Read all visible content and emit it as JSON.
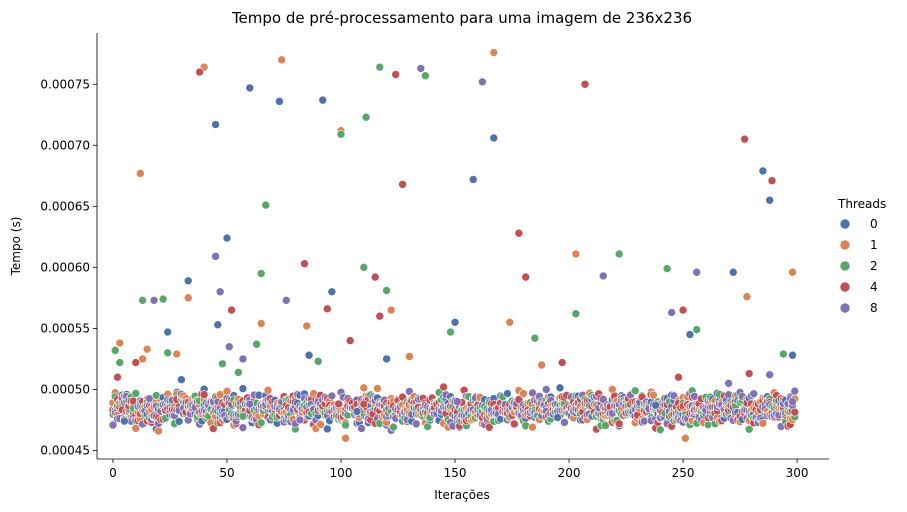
{
  "chart_data": {
    "type": "scatter",
    "title": "Tempo de pré-processamento para uma imagem de 236x236",
    "xlabel": "Iterações",
    "ylabel": "Tempo (s)",
    "xlim": [
      -7,
      314
    ],
    "ylim": [
      0.000443,
      0.000792
    ],
    "x_ticks": [
      0,
      50,
      100,
      150,
      200,
      250,
      300
    ],
    "x_tick_labels": [
      "0",
      "50",
      "100",
      "150",
      "200",
      "250",
      "300"
    ],
    "y_ticks": [
      0.00045,
      0.0005,
      0.00055,
      0.0006,
      0.00065,
      0.0007,
      0.00075
    ],
    "y_tick_labels": [
      "0.00045",
      "0.00050",
      "0.00055",
      "0.00060",
      "0.00065",
      "0.00070",
      "0.00075"
    ],
    "grid": false,
    "legend": {
      "title": "Threads",
      "placement": "right"
    },
    "series": [
      {
        "name": "0",
        "color": "#4c72b0",
        "points": [
          [
            5,
            0.000474
          ],
          [
            30,
            0.000508
          ],
          [
            33,
            0.000589
          ],
          [
            45,
            0.000717
          ],
          [
            46,
            0.000553
          ],
          [
            50,
            0.000624
          ],
          [
            60,
            0.000747
          ],
          [
            73,
            0.000736
          ],
          [
            92,
            0.000737
          ],
          [
            96,
            0.00058
          ],
          [
            107,
            0.000482
          ],
          [
            120,
            0.000525
          ],
          [
            150,
            0.000555
          ],
          [
            158,
            0.000672
          ],
          [
            167,
            0.000706
          ],
          [
            195,
            0.000477
          ],
          [
            238,
            0.000487
          ],
          [
            253,
            0.000545
          ],
          [
            272,
            0.000596
          ],
          [
            285,
            0.000679
          ],
          [
            288,
            0.000655
          ],
          [
            298,
            0.000528
          ],
          [
            24,
            0.000547
          ],
          [
            86,
            0.000528
          ]
        ]
      },
      {
        "name": "1",
        "color": "#dd8452",
        "points": [
          [
            12,
            0.000677
          ],
          [
            13,
            0.000525
          ],
          [
            15,
            0.000533
          ],
          [
            33,
            0.000575
          ],
          [
            40,
            0.000764
          ],
          [
            65,
            0.000554
          ],
          [
            74,
            0.00077
          ],
          [
            85,
            0.000552
          ],
          [
            100,
            0.000712
          ],
          [
            102,
            0.00046
          ],
          [
            122,
            0.000565
          ],
          [
            130,
            0.000527
          ],
          [
            167,
            0.000776
          ],
          [
            174,
            0.000555
          ],
          [
            188,
            0.00052
          ],
          [
            203,
            0.000611
          ],
          [
            251,
            0.00046
          ],
          [
            278,
            0.000576
          ],
          [
            298,
            0.000596
          ],
          [
            3,
            0.000538
          ],
          [
            28,
            0.000529
          ]
        ]
      },
      {
        "name": "2",
        "color": "#55a868",
        "points": [
          [
            1,
            0.000532
          ],
          [
            3,
            0.000522
          ],
          [
            13,
            0.000573
          ],
          [
            22,
            0.000574
          ],
          [
            24,
            0.00053
          ],
          [
            48,
            0.000521
          ],
          [
            55,
            0.000514
          ],
          [
            63,
            0.000537
          ],
          [
            65,
            0.000595
          ],
          [
            67,
            0.000651
          ],
          [
            90,
            0.000523
          ],
          [
            100,
            0.000709
          ],
          [
            110,
            0.0006
          ],
          [
            111,
            0.000723
          ],
          [
            117,
            0.000764
          ],
          [
            120,
            0.000581
          ],
          [
            137,
            0.000757
          ],
          [
            148,
            0.000547
          ],
          [
            185,
            0.000542
          ],
          [
            203,
            0.000562
          ],
          [
            222,
            0.000611
          ],
          [
            243,
            0.000599
          ],
          [
            256,
            0.000549
          ],
          [
            294,
            0.000529
          ],
          [
            240,
            0.000467
          ],
          [
            57,
            0.000478
          ]
        ]
      },
      {
        "name": "4",
        "color": "#c44e52",
        "points": [
          [
            2,
            0.00051
          ],
          [
            10,
            0.000522
          ],
          [
            38,
            0.00076
          ],
          [
            52,
            0.000565
          ],
          [
            84,
            0.000603
          ],
          [
            94,
            0.000566
          ],
          [
            104,
            0.00054
          ],
          [
            115,
            0.000592
          ],
          [
            117,
            0.00056
          ],
          [
            124,
            0.000758
          ],
          [
            127,
            0.000668
          ],
          [
            145,
            0.000502
          ],
          [
            178,
            0.000628
          ],
          [
            181,
            0.000592
          ],
          [
            207,
            0.00075
          ],
          [
            248,
            0.00051
          ],
          [
            250,
            0.000565
          ],
          [
            277,
            0.000705
          ],
          [
            279,
            0.000513
          ],
          [
            289,
            0.000671
          ],
          [
            110,
            0.000488
          ],
          [
            197,
            0.000522
          ]
        ]
      },
      {
        "name": "8",
        "color": "#8172b3",
        "points": [
          [
            18,
            0.000573
          ],
          [
            45,
            0.000609
          ],
          [
            47,
            0.00058
          ],
          [
            51,
            0.000535
          ],
          [
            57,
            0.000525
          ],
          [
            76,
            0.000573
          ],
          [
            82,
            0.000475
          ],
          [
            109,
            0.000468
          ],
          [
            135,
            0.000763
          ],
          [
            151,
            0.00049
          ],
          [
            162,
            0.000752
          ],
          [
            215,
            0.000593
          ],
          [
            245,
            0.000563
          ],
          [
            256,
            0.000596
          ],
          [
            270,
            0.000505
          ],
          [
            288,
            0.000512
          ],
          [
            298,
            0.00049
          ],
          [
            60,
            0.000488
          ],
          [
            190,
            0.0005
          ]
        ]
      }
    ],
    "dense_band": {
      "description_free_note": "",
      "x_range": [
        0,
        299
      ],
      "y_center": 0.000484,
      "y_spread": 1.15e-05
    }
  }
}
